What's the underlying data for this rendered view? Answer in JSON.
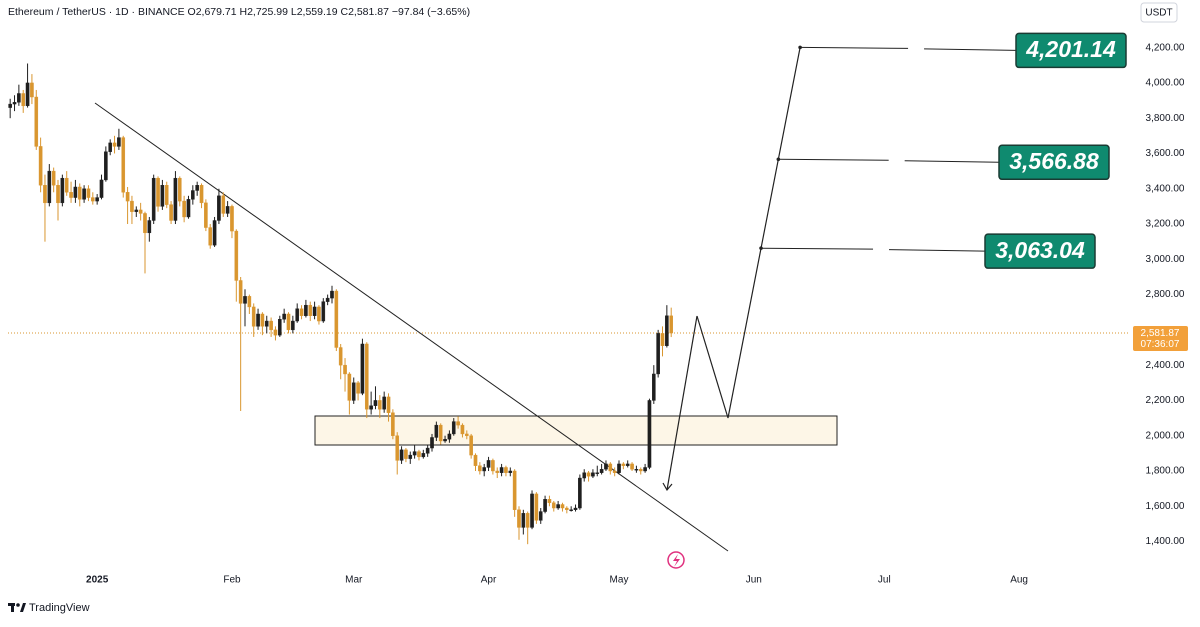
{
  "chart_data": {
    "type": "candlestick",
    "title": "Ethereum / TetherUS · 1D · BINANCE  O2,679.71 H2,725.99 L2,559.19 C2,581.87 −97.84 (−3.65%)",
    "currency": "USDT",
    "brand": "TradingView",
    "last_price_label": "2,581.87",
    "countdown": "07:36:07",
    "up_color": "#1f1f1f",
    "down_color": "#d9962f",
    "xlim": [
      -0.5,
      257.5
    ],
    "xticks": [
      {
        "value": 20,
        "label": "2025"
      },
      {
        "value": 51,
        "label": "Feb"
      },
      {
        "value": 79,
        "label": "Mar"
      },
      {
        "value": 110,
        "label": "Apr"
      },
      {
        "value": 140,
        "label": "May"
      },
      {
        "value": 171,
        "label": "Jun"
      },
      {
        "value": 201,
        "label": "Jul"
      },
      {
        "value": 232,
        "label": "Aug"
      }
    ],
    "ylim": [
      1250,
      4470
    ],
    "yticks": [
      {
        "value": 1400,
        "label": "1,400.00"
      },
      {
        "value": 1600,
        "label": "1,600.00"
      },
      {
        "value": 1800,
        "label": "1,800.00"
      },
      {
        "value": 2000,
        "label": "2,000.00"
      },
      {
        "value": 2200,
        "label": "2,200.00"
      },
      {
        "value": 2400,
        "label": "2,400.00"
      },
      {
        "value": 2800,
        "label": "2,800.00"
      },
      {
        "value": 3000,
        "label": "3,000.00"
      },
      {
        "value": 3200,
        "label": "3,200.00"
      },
      {
        "value": 3400,
        "label": "3,400.00"
      },
      {
        "value": 3600,
        "label": "3,600.00"
      },
      {
        "value": 3800,
        "label": "3,800.00"
      },
      {
        "value": 4000,
        "label": "4,000.00"
      },
      {
        "value": 4200,
        "label": "4,200.00"
      }
    ],
    "targets": [
      {
        "value": 4201.14,
        "label": "4,201.14"
      },
      {
        "value": 3566.88,
        "label": "3,566.88"
      },
      {
        "value": 3063.04,
        "label": "3,063.04"
      }
    ],
    "candles": [
      [
        3860,
        3910,
        3800,
        3880
      ],
      [
        3880,
        3930,
        3840,
        3890
      ],
      [
        3890,
        3990,
        3870,
        3940
      ],
      [
        3940,
        3960,
        3830,
        3870
      ],
      [
        3870,
        4110,
        3860,
        4000
      ],
      [
        4000,
        4050,
        3880,
        3920
      ],
      [
        3920,
        3960,
        3620,
        3640
      ],
      [
        3640,
        3690,
        3380,
        3420
      ],
      [
        3420,
        3480,
        3100,
        3320
      ],
      [
        3320,
        3540,
        3300,
        3500
      ],
      [
        3500,
        3520,
        3380,
        3420
      ],
      [
        3420,
        3450,
        3220,
        3320
      ],
      [
        3320,
        3480,
        3300,
        3460
      ],
      [
        3460,
        3500,
        3360,
        3380
      ],
      [
        3380,
        3440,
        3320,
        3350
      ],
      [
        3350,
        3450,
        3320,
        3410
      ],
      [
        3410,
        3430,
        3300,
        3340
      ],
      [
        3340,
        3420,
        3320,
        3400
      ],
      [
        3400,
        3420,
        3330,
        3350
      ],
      [
        3350,
        3380,
        3310,
        3330
      ],
      [
        3330,
        3370,
        3310,
        3350
      ],
      [
        3350,
        3480,
        3340,
        3450
      ],
      [
        3450,
        3640,
        3440,
        3610
      ],
      [
        3610,
        3680,
        3590,
        3660
      ],
      [
        3660,
        3700,
        3600,
        3640
      ],
      [
        3640,
        3740,
        3620,
        3690
      ],
      [
        3690,
        3700,
        3350,
        3380
      ],
      [
        3380,
        3410,
        3200,
        3330
      ],
      [
        3330,
        3360,
        3200,
        3270
      ],
      [
        3270,
        3300,
        3240,
        3280
      ],
      [
        3280,
        3320,
        3220,
        3260
      ],
      [
        3260,
        3270,
        2920,
        3150
      ],
      [
        3150,
        3240,
        3100,
        3220
      ],
      [
        3220,
        3480,
        3200,
        3460
      ],
      [
        3460,
        3470,
        3270,
        3300
      ],
      [
        3300,
        3450,
        3280,
        3420
      ],
      [
        3420,
        3440,
        3290,
        3310
      ],
      [
        3310,
        3330,
        3200,
        3220
      ],
      [
        3220,
        3500,
        3200,
        3460
      ],
      [
        3460,
        3470,
        3300,
        3330
      ],
      [
        3330,
        3360,
        3210,
        3240
      ],
      [
        3240,
        3360,
        3230,
        3340
      ],
      [
        3340,
        3420,
        3310,
        3390
      ],
      [
        3390,
        3440,
        3360,
        3420
      ],
      [
        3420,
        3430,
        3290,
        3320
      ],
      [
        3320,
        3340,
        3160,
        3180
      ],
      [
        3180,
        3200,
        3060,
        3080
      ],
      [
        3080,
        3240,
        3070,
        3220
      ],
      [
        3220,
        3400,
        3200,
        3360
      ],
      [
        3360,
        3380,
        3240,
        3260
      ],
      [
        3260,
        3330,
        3240,
        3300
      ],
      [
        3300,
        3310,
        3120,
        3160
      ],
      [
        3160,
        3170,
        2760,
        2880
      ],
      [
        2880,
        2900,
        2140,
        2750
      ],
      [
        2750,
        2830,
        2620,
        2790
      ],
      [
        2790,
        2800,
        2690,
        2730
      ],
      [
        2730,
        2750,
        2560,
        2620
      ],
      [
        2620,
        2720,
        2600,
        2690
      ],
      [
        2690,
        2700,
        2570,
        2620
      ],
      [
        2620,
        2680,
        2580,
        2650
      ],
      [
        2650,
        2670,
        2560,
        2600
      ],
      [
        2600,
        2620,
        2540,
        2570
      ],
      [
        2570,
        2680,
        2560,
        2660
      ],
      [
        2660,
        2720,
        2640,
        2690
      ],
      [
        2690,
        2700,
        2580,
        2600
      ],
      [
        2600,
        2680,
        2580,
        2650
      ],
      [
        2650,
        2750,
        2640,
        2720
      ],
      [
        2720,
        2740,
        2660,
        2680
      ],
      [
        2680,
        2770,
        2670,
        2740
      ],
      [
        2740,
        2760,
        2650,
        2680
      ],
      [
        2680,
        2760,
        2660,
        2730
      ],
      [
        2730,
        2740,
        2630,
        2650
      ],
      [
        2650,
        2780,
        2640,
        2760
      ],
      [
        2760,
        2800,
        2740,
        2780
      ],
      [
        2780,
        2850,
        2750,
        2820
      ],
      [
        2820,
        2830,
        2480,
        2500
      ],
      [
        2500,
        2520,
        2320,
        2400
      ],
      [
        2400,
        2440,
        2250,
        2350
      ],
      [
        2350,
        2360,
        2120,
        2200
      ],
      [
        2200,
        2330,
        2180,
        2300
      ],
      [
        2300,
        2310,
        2200,
        2240
      ],
      [
        2240,
        2550,
        2230,
        2520
      ],
      [
        2520,
        2530,
        2100,
        2150
      ],
      [
        2150,
        2250,
        2120,
        2170
      ],
      [
        2170,
        2280,
        2150,
        2200
      ],
      [
        2200,
        2230,
        2100,
        2150
      ],
      [
        2150,
        2250,
        2130,
        2220
      ],
      [
        2220,
        2240,
        2080,
        2130
      ],
      [
        2130,
        2150,
        1980,
        2000
      ],
      [
        2000,
        2020,
        1780,
        1860
      ],
      [
        1860,
        1940,
        1840,
        1920
      ],
      [
        1920,
        1930,
        1850,
        1870
      ],
      [
        1870,
        1910,
        1840,
        1890
      ],
      [
        1890,
        1950,
        1870,
        1910
      ],
      [
        1910,
        1920,
        1860,
        1880
      ],
      [
        1880,
        1920,
        1870,
        1900
      ],
      [
        1900,
        1950,
        1880,
        1930
      ],
      [
        1930,
        2010,
        1910,
        1990
      ],
      [
        1990,
        2080,
        1970,
        2060
      ],
      [
        2060,
        2070,
        1950,
        1970
      ],
      [
        1970,
        2000,
        1960,
        1980
      ],
      [
        1980,
        2030,
        1960,
        2010
      ],
      [
        2010,
        2100,
        2000,
        2080
      ],
      [
        2080,
        2110,
        2040,
        2060
      ],
      [
        2060,
        2070,
        1990,
        2010
      ],
      [
        2010,
        2030,
        1980,
        2000
      ],
      [
        2000,
        2010,
        1870,
        1890
      ],
      [
        1890,
        1900,
        1800,
        1830
      ],
      [
        1830,
        1850,
        1780,
        1800
      ],
      [
        1800,
        1840,
        1770,
        1820
      ],
      [
        1820,
        1880,
        1800,
        1860
      ],
      [
        1860,
        1870,
        1780,
        1800
      ],
      [
        1800,
        1820,
        1760,
        1790
      ],
      [
        1790,
        1840,
        1770,
        1820
      ],
      [
        1820,
        1830,
        1770,
        1790
      ],
      [
        1790,
        1820,
        1770,
        1800
      ],
      [
        1800,
        1810,
        1540,
        1580
      ],
      [
        1580,
        1600,
        1410,
        1480
      ],
      [
        1480,
        1580,
        1440,
        1560
      ],
      [
        1560,
        1570,
        1385,
        1480
      ],
      [
        1480,
        1690,
        1470,
        1670
      ],
      [
        1670,
        1680,
        1500,
        1520
      ],
      [
        1520,
        1590,
        1500,
        1570
      ],
      [
        1570,
        1660,
        1560,
        1640
      ],
      [
        1640,
        1660,
        1600,
        1620
      ],
      [
        1620,
        1630,
        1570,
        1590
      ],
      [
        1590,
        1630,
        1580,
        1610
      ],
      [
        1610,
        1620,
        1570,
        1590
      ],
      [
        1590,
        1600,
        1560,
        1580
      ],
      [
        1580,
        1600,
        1570,
        1580
      ],
      [
        1580,
        1610,
        1570,
        1590
      ],
      [
        1590,
        1780,
        1580,
        1760
      ],
      [
        1760,
        1810,
        1740,
        1790
      ],
      [
        1790,
        1800,
        1740,
        1770
      ],
      [
        1770,
        1810,
        1760,
        1790
      ],
      [
        1790,
        1830,
        1770,
        1790
      ],
      [
        1790,
        1840,
        1780,
        1810
      ],
      [
        1810,
        1860,
        1800,
        1840
      ],
      [
        1840,
        1850,
        1780,
        1800
      ],
      [
        1800,
        1820,
        1770,
        1790
      ],
      [
        1790,
        1860,
        1780,
        1840
      ],
      [
        1840,
        1850,
        1810,
        1830
      ],
      [
        1830,
        1860,
        1820,
        1840
      ],
      [
        1840,
        1850,
        1800,
        1810
      ],
      [
        1810,
        1830,
        1790,
        1810
      ],
      [
        1810,
        1820,
        1780,
        1800
      ],
      [
        1800,
        1840,
        1790,
        1820
      ],
      [
        1820,
        2210,
        1810,
        2200
      ],
      [
        2200,
        2400,
        2180,
        2350
      ],
      [
        2350,
        2600,
        2330,
        2580
      ],
      [
        2580,
        2620,
        2450,
        2510
      ],
      [
        2510,
        2740,
        2500,
        2680
      ],
      [
        2679.71,
        2725.99,
        2559.19,
        2581.87
      ]
    ]
  }
}
